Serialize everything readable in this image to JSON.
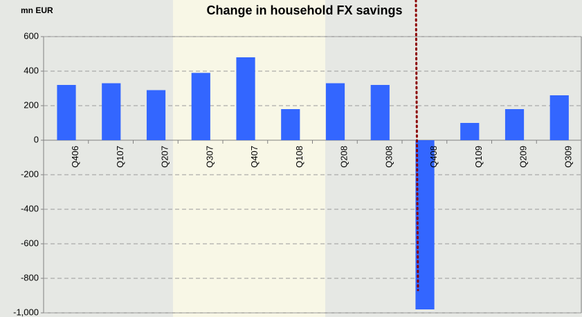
{
  "chart_data": {
    "type": "bar",
    "title": "Change in household FX savings",
    "y_axis_label": "mn EUR",
    "categories": [
      "Q406",
      "Q107",
      "Q207",
      "Q307",
      "Q407",
      "Q108",
      "Q208",
      "Q308",
      "Q408",
      "Q109",
      "Q209",
      "Q309"
    ],
    "values": [
      320,
      330,
      290,
      390,
      480,
      180,
      330,
      320,
      -980,
      100,
      180,
      260
    ],
    "color": "#3366ff",
    "ylim": [
      -1000,
      600
    ],
    "yticks": [
      {
        "value": -1000,
        "label": "-1,000"
      },
      -800,
      -600,
      -400,
      -200,
      0,
      200,
      400,
      600
    ],
    "grid": true
  }
}
